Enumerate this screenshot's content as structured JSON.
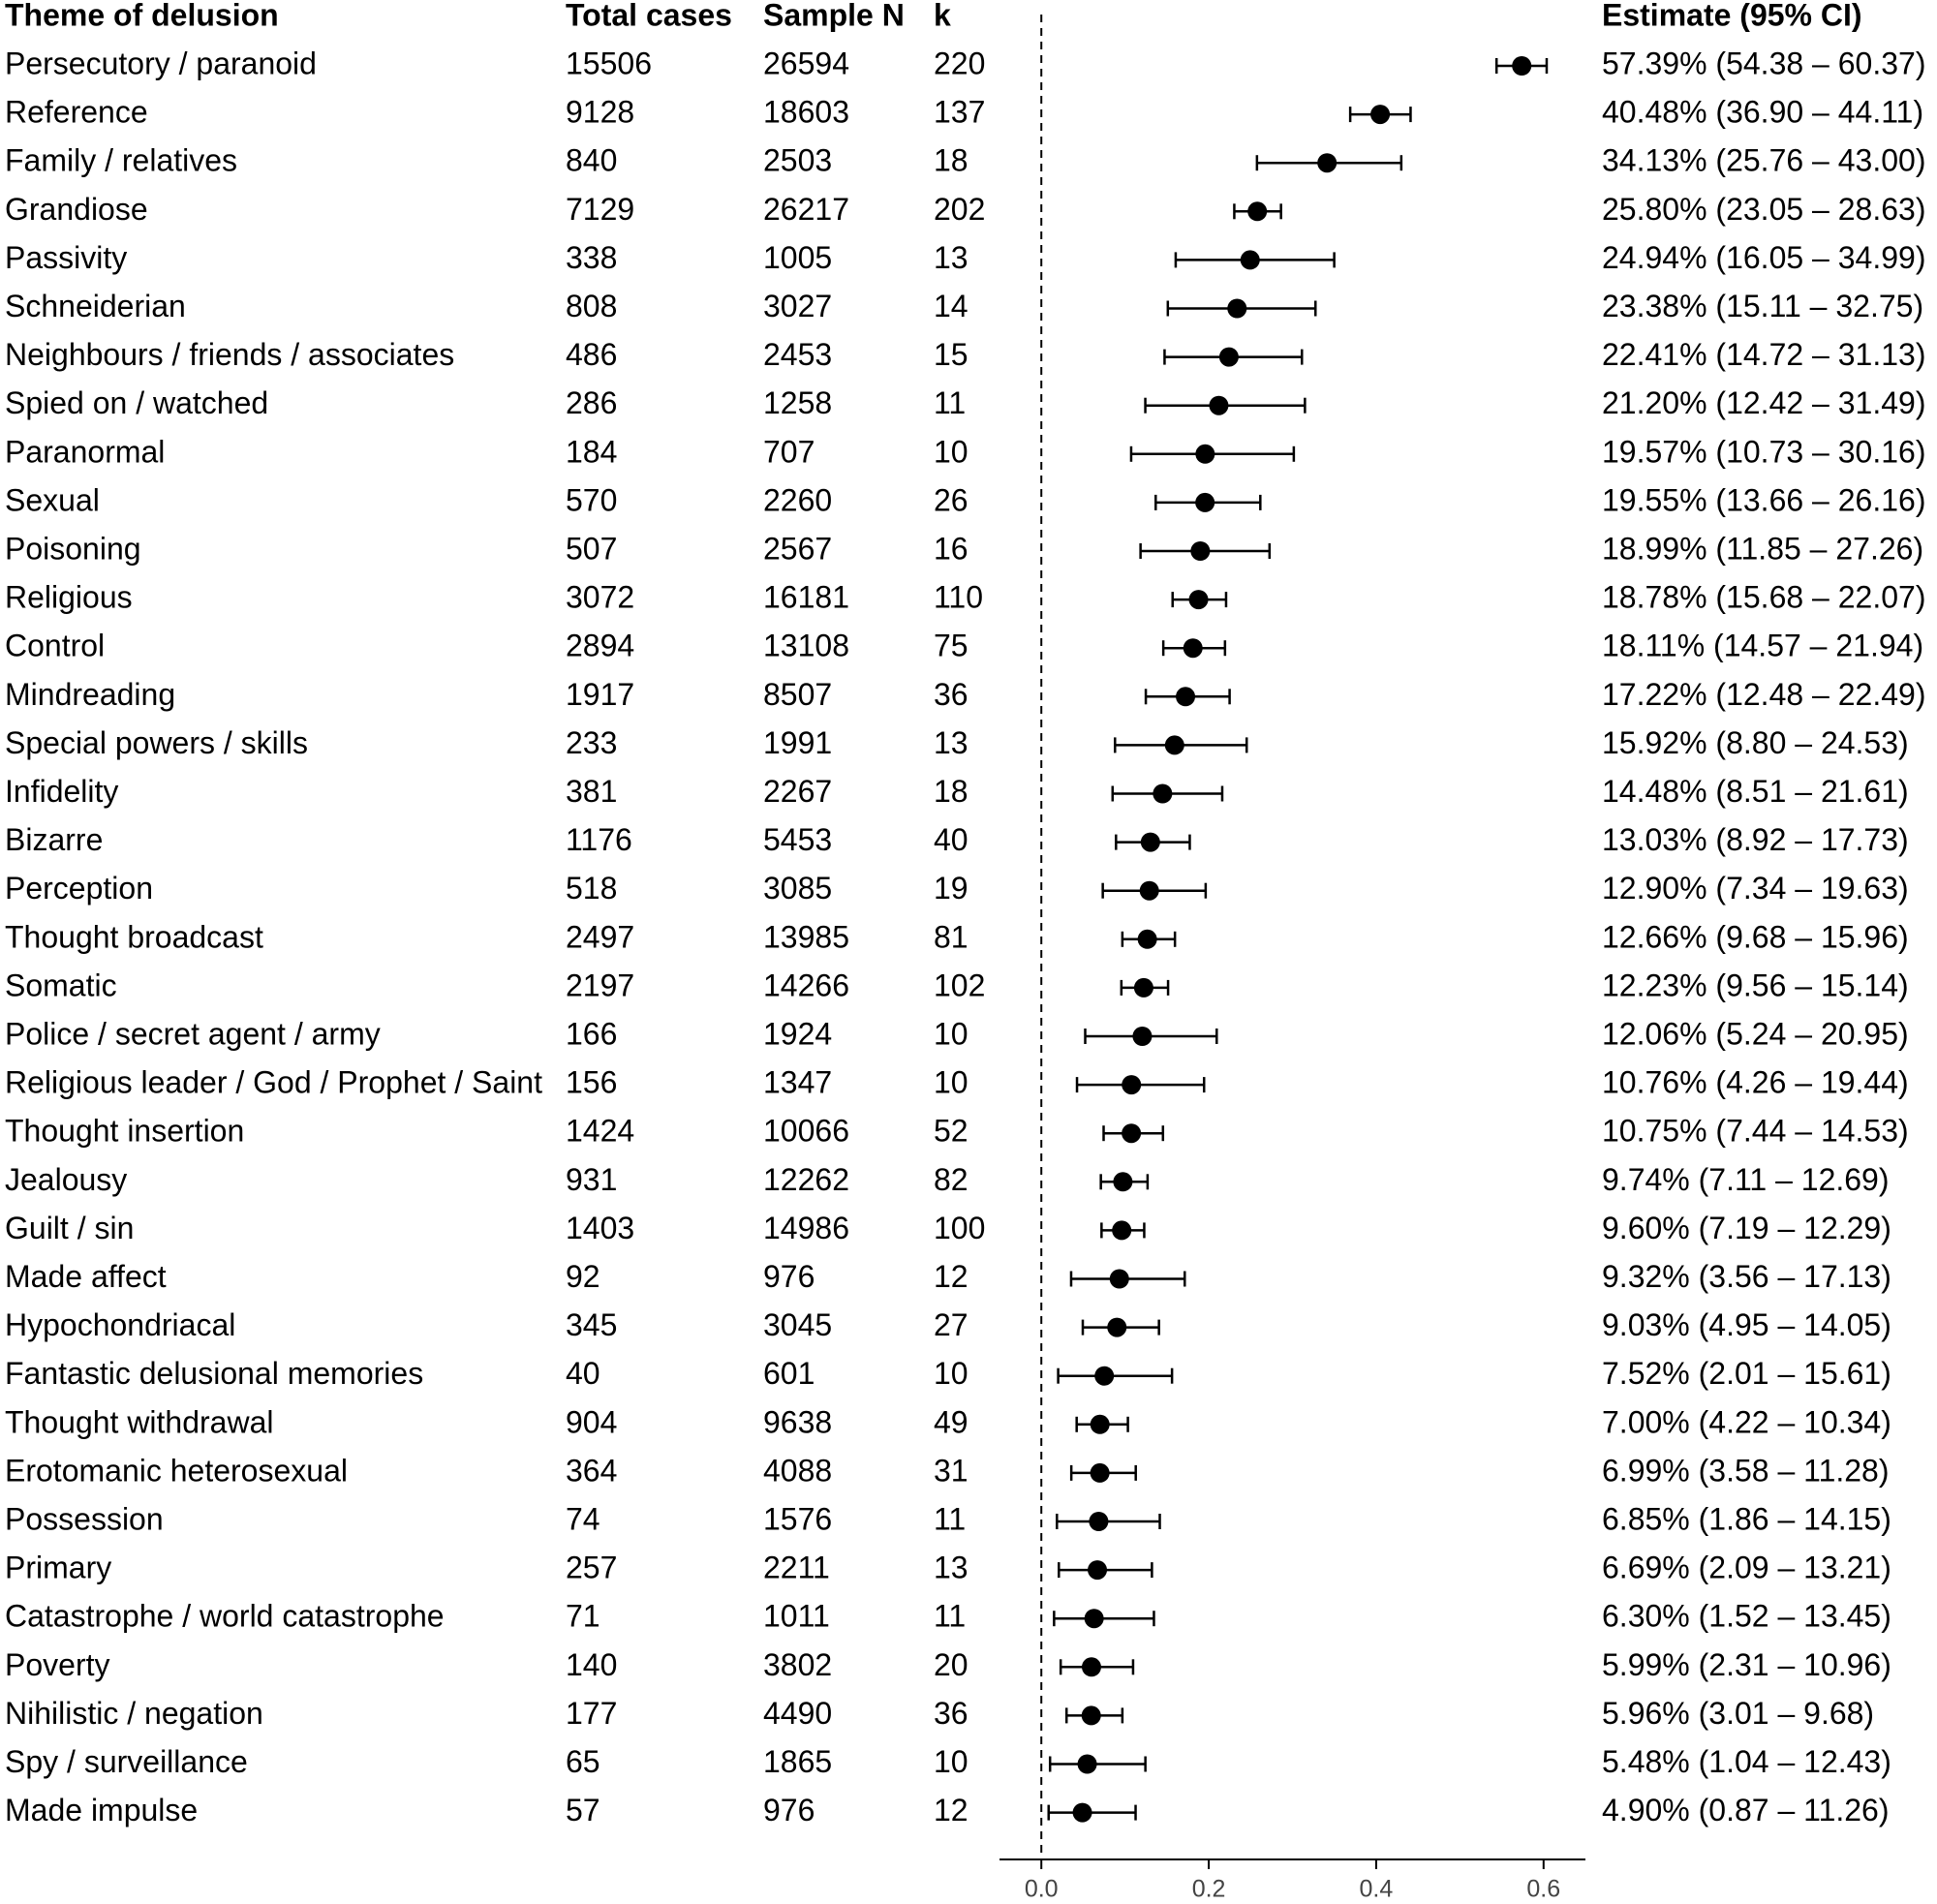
{
  "chart_data": {
    "type": "forest",
    "headers": {
      "theme": "Theme of delusion",
      "total": "Total cases",
      "sample": "Sample N",
      "k": "k",
      "estimate": "Estimate (95% CI)"
    },
    "categories": [
      "Persecutory / paranoid",
      "Reference",
      "Family / relatives",
      "Grandiose",
      "Passivity",
      "Schneiderian",
      "Neighbours / friends / associates",
      "Spied on / watched",
      "Paranormal",
      "Sexual",
      "Poisoning",
      "Religious",
      "Control",
      "Mindreading",
      "Special powers / skills",
      "Infidelity",
      "Bizarre",
      "Perception",
      "Thought broadcast",
      "Somatic",
      "Police / secret agent / army",
      "Religious leader / God / Prophet / Saint",
      "Thought insertion",
      "Jealousy",
      "Guilt / sin",
      "Made affect",
      "Hypochondriacal",
      "Fantastic delusional memories",
      "Thought withdrawal",
      "Erotomanic heterosexual",
      "Possession",
      "Primary",
      "Catastrophe / world catastrophe",
      "Poverty",
      "Nihilistic / negation",
      "Spy / surveillance",
      "Made impulse"
    ],
    "total_cases": [
      15506,
      9128,
      840,
      7129,
      338,
      808,
      486,
      286,
      184,
      570,
      507,
      3072,
      2894,
      1917,
      233,
      381,
      1176,
      518,
      2497,
      2197,
      166,
      156,
      1424,
      931,
      1403,
      92,
      345,
      40,
      904,
      364,
      74,
      257,
      71,
      140,
      177,
      65,
      57
    ],
    "sample_n": [
      26594,
      18603,
      2503,
      26217,
      1005,
      3027,
      2453,
      1258,
      707,
      2260,
      2567,
      16181,
      13108,
      8507,
      1991,
      2267,
      5453,
      3085,
      13985,
      14266,
      1924,
      1347,
      10066,
      12262,
      14986,
      976,
      3045,
      601,
      9638,
      4088,
      1576,
      2211,
      1011,
      3802,
      4490,
      1865,
      976
    ],
    "k": [
      220,
      137,
      18,
      202,
      13,
      14,
      15,
      11,
      10,
      26,
      16,
      110,
      75,
      36,
      13,
      18,
      40,
      19,
      81,
      102,
      10,
      10,
      52,
      82,
      100,
      12,
      27,
      10,
      49,
      31,
      11,
      13,
      11,
      20,
      36,
      10,
      12
    ],
    "values": [
      0.5739,
      0.4048,
      0.3413,
      0.258,
      0.2494,
      0.2338,
      0.2241,
      0.212,
      0.1957,
      0.1955,
      0.1899,
      0.1878,
      0.1811,
      0.1722,
      0.1592,
      0.1448,
      0.1303,
      0.129,
      0.1266,
      0.1223,
      0.1206,
      0.1076,
      0.1075,
      0.0974,
      0.096,
      0.0932,
      0.0903,
      0.0752,
      0.07,
      0.0699,
      0.0685,
      0.0669,
      0.063,
      0.0599,
      0.0596,
      0.0548,
      0.049
    ],
    "lower": [
      0.5438,
      0.369,
      0.2576,
      0.2305,
      0.1605,
      0.1511,
      0.1472,
      0.1242,
      0.1073,
      0.1366,
      0.1185,
      0.1568,
      0.1457,
      0.1248,
      0.088,
      0.0851,
      0.0892,
      0.0734,
      0.0968,
      0.0956,
      0.0524,
      0.0426,
      0.0744,
      0.0711,
      0.0719,
      0.0356,
      0.0495,
      0.0201,
      0.0422,
      0.0358,
      0.0186,
      0.0209,
      0.0152,
      0.0231,
      0.0301,
      0.0104,
      0.0087
    ],
    "upper": [
      0.6037,
      0.4411,
      0.43,
      0.2863,
      0.3499,
      0.3275,
      0.3113,
      0.3149,
      0.3016,
      0.2616,
      0.2726,
      0.2207,
      0.2194,
      0.2249,
      0.2453,
      0.2161,
      0.1773,
      0.1963,
      0.1596,
      0.1514,
      0.2095,
      0.1944,
      0.1453,
      0.1269,
      0.1229,
      0.1713,
      0.1405,
      0.1561,
      0.1034,
      0.1128,
      0.1415,
      0.1321,
      0.1345,
      0.1096,
      0.0968,
      0.1243,
      0.1126
    ],
    "value_labels": [
      "57.39% (54.38 – 60.37)",
      "40.48% (36.90 – 44.11)",
      "34.13% (25.76 – 43.00)",
      "25.80% (23.05 – 28.63)",
      "24.94% (16.05 – 34.99)",
      "23.38% (15.11 – 32.75)",
      "22.41% (14.72 – 31.13)",
      "21.20% (12.42 – 31.49)",
      "19.57% (10.73 – 30.16)",
      "19.55% (13.66 – 26.16)",
      "18.99% (11.85 – 27.26)",
      "18.78% (15.68 – 22.07)",
      "18.11% (14.57 – 21.94)",
      "17.22% (12.48 – 22.49)",
      "15.92% (8.80 – 24.53)",
      "14.48% (8.51 – 21.61)",
      "13.03% (8.92 – 17.73)",
      "12.90% (7.34 – 19.63)",
      "12.66% (9.68 – 15.96)",
      "12.23% (9.56 – 15.14)",
      "12.06% (5.24 – 20.95)",
      "10.76% (4.26 – 19.44)",
      "10.75% (7.44 – 14.53)",
      "9.74% (7.11 – 12.69)",
      "9.60% (7.19 – 12.29)",
      "9.32% (3.56 – 17.13)",
      "9.03% (4.95 – 14.05)",
      "7.52% (2.01 – 15.61)",
      "7.00% (4.22 – 10.34)",
      "6.99% (3.58 – 11.28)",
      "6.85% (1.86 – 14.15)",
      "6.69% (2.09 – 13.21)",
      "6.30% (1.52 – 13.45)",
      "5.99% (2.31 – 10.96)",
      "5.96% (3.01 – 9.68)",
      "5.48% (1.04 – 12.43)",
      "4.90% (0.87 – 11.26)"
    ],
    "color": "#000000",
    "xlim": [
      -0.05,
      0.65
    ],
    "xticks": [
      {
        "value": 0,
        "label": "0.0"
      },
      0.2,
      0.4,
      0.6
    ]
  }
}
